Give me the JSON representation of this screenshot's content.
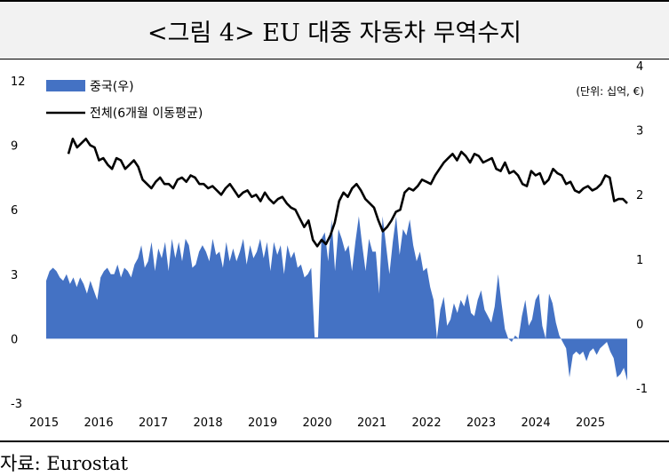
{
  "title": "<그림 4> EU 대중 자동차 무역수지",
  "source": "자료: Eurostat",
  "chart_data": {
    "type": "area",
    "unit_note": "(단위: 십억, €)",
    "x_ticks": [
      "2015",
      "2016",
      "2017",
      "2018",
      "2019",
      "2020",
      "2021",
      "2022",
      "2023",
      "2024",
      "2025"
    ],
    "y_left": {
      "range": [
        -3,
        12
      ],
      "ticks": [
        "12",
        "9",
        "6",
        "3",
        "0",
        "-3"
      ]
    },
    "y_right": {
      "range": [
        -1,
        4
      ],
      "ticks": [
        "4",
        "3",
        "2",
        "1",
        "0",
        "-1"
      ]
    },
    "grid": false,
    "legend_position": "top-left",
    "series": [
      {
        "name": "중국(우)",
        "type": "area",
        "axis": "right",
        "color": "#4472c4",
        "values": [
          0.9,
          1.05,
          1.1,
          1.05,
          0.95,
          0.9,
          1.0,
          0.85,
          0.95,
          0.8,
          0.95,
          0.85,
          0.7,
          0.9,
          0.75,
          0.6,
          0.95,
          1.05,
          1.1,
          1.0,
          1.0,
          1.15,
          0.95,
          1.1,
          1.05,
          0.95,
          1.15,
          1.25,
          1.45,
          1.1,
          1.2,
          1.5,
          1.05,
          1.4,
          1.25,
          1.5,
          1.05,
          1.55,
          1.25,
          1.5,
          1.2,
          1.55,
          1.45,
          1.1,
          1.15,
          1.35,
          1.45,
          1.35,
          1.2,
          1.55,
          1.3,
          1.35,
          1.1,
          1.5,
          1.2,
          1.4,
          1.2,
          1.35,
          1.55,
          1.15,
          1.45,
          1.25,
          1.35,
          1.55,
          1.25,
          1.5,
          1.05,
          1.5,
          1.3,
          1.45,
          1.0,
          1.45,
          1.25,
          1.35,
          1.1,
          1.15,
          0.95,
          1.0,
          1.1,
          0.02,
          0.02,
          1.55,
          1.65,
          1.2,
          1.85,
          1.05,
          1.7,
          1.55,
          1.35,
          1.45,
          1.05,
          1.5,
          1.9,
          1.45,
          1.05,
          1.55,
          1.35,
          1.35,
          0.7,
          1.9,
          1.45,
          1.0,
          1.5,
          1.9,
          1.3,
          1.7,
          1.6,
          1.85,
          1.45,
          1.2,
          1.35,
          1.05,
          1.1,
          0.8,
          0.6,
          0.0,
          0.45,
          0.65,
          0.2,
          0.3,
          0.55,
          0.4,
          0.6,
          0.5,
          0.7,
          0.4,
          0.35,
          0.6,
          0.75,
          0.45,
          0.35,
          0.25,
          0.5,
          1.0,
          0.55,
          0.15,
          0.0,
          -0.05,
          0.05,
          0.0,
          0.35,
          0.6,
          0.2,
          0.3,
          0.6,
          0.7,
          0.2,
          0.0,
          0.7,
          0.55,
          0.25,
          0.05,
          -0.05,
          -0.15,
          -0.6,
          -0.25,
          -0.2,
          -0.25,
          -0.2,
          -0.35,
          -0.2,
          -0.15,
          -0.25,
          -0.15,
          -0.1,
          -0.05,
          -0.2,
          -0.3,
          -0.6,
          -0.55,
          -0.45,
          -0.65
        ]
      },
      {
        "name": "전체(6개월 이동평균)",
        "type": "line",
        "axis": "left",
        "color": "#000000",
        "values": [
          8.6,
          9.3,
          8.9,
          9.1,
          9.3,
          9.0,
          8.9,
          8.3,
          8.4,
          8.1,
          7.9,
          8.4,
          8.3,
          7.9,
          8.1,
          8.3,
          8.0,
          7.4,
          7.2,
          7.0,
          7.3,
          7.5,
          7.2,
          7.2,
          7.0,
          7.4,
          7.5,
          7.3,
          7.6,
          7.5,
          7.2,
          7.2,
          7.0,
          7.1,
          6.9,
          6.7,
          7.0,
          7.2,
          6.9,
          6.6,
          6.8,
          6.9,
          6.6,
          6.7,
          6.4,
          6.8,
          6.5,
          6.3,
          6.5,
          6.6,
          6.3,
          6.1,
          6.0,
          5.6,
          5.2,
          5.5,
          4.6,
          4.3,
          4.6,
          4.4,
          4.8,
          5.4,
          6.4,
          6.8,
          6.6,
          7.0,
          7.2,
          6.9,
          6.5,
          6.3,
          6.1,
          5.5,
          5.0,
          5.2,
          5.5,
          5.9,
          6.0,
          6.8,
          7.0,
          6.9,
          7.1,
          7.4,
          7.3,
          7.2,
          7.6,
          7.9,
          8.2,
          8.4,
          8.6,
          8.3,
          8.7,
          8.5,
          8.2,
          8.6,
          8.5,
          8.2,
          8.3,
          8.4,
          7.9,
          7.8,
          8.2,
          7.7,
          7.8,
          7.6,
          7.2,
          7.1,
          7.8,
          7.6,
          7.7,
          7.2,
          7.4,
          7.9,
          7.7,
          7.6,
          7.2,
          7.3,
          6.9,
          6.8,
          7.0,
          7.1,
          6.9,
          7.0,
          7.2,
          7.6,
          7.5,
          6.4,
          6.5,
          6.5,
          6.3
        ]
      }
    ]
  }
}
